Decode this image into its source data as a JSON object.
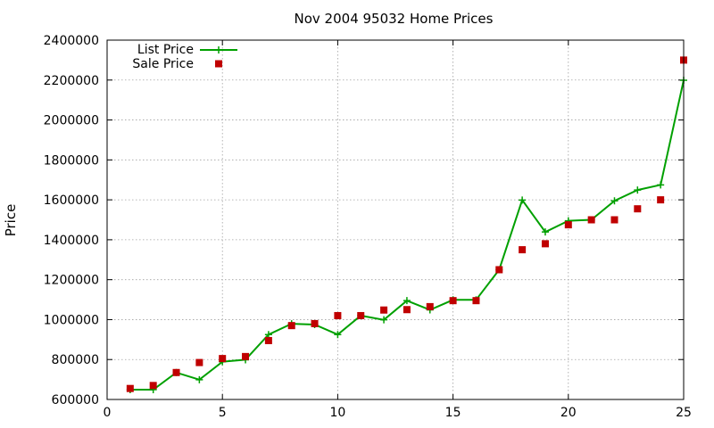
{
  "chart_data": {
    "type": "line",
    "title": "Nov 2004 95032 Home Prices",
    "xlabel": "",
    "ylabel": "Price",
    "xlim": [
      0,
      25
    ],
    "ylim": [
      600000,
      2400000
    ],
    "xticks": [
      0,
      5,
      10,
      15,
      20,
      25
    ],
    "yticks": [
      600000,
      800000,
      1000000,
      1200000,
      1400000,
      1600000,
      1800000,
      2000000,
      2200000,
      2400000
    ],
    "grid": true,
    "legend_position": "top-left",
    "series": [
      {
        "name": "List Price",
        "style": "line-with-plus-markers",
        "color": "#00a000",
        "x": [
          1,
          2,
          3,
          4,
          5,
          6,
          7,
          8,
          9,
          10,
          11,
          12,
          13,
          14,
          15,
          16,
          17,
          18,
          19,
          20,
          21,
          22,
          23,
          24,
          25
        ],
        "y": [
          649000,
          649000,
          735000,
          699000,
          789000,
          799000,
          925000,
          979000,
          975000,
          925000,
          1020000,
          999000,
          1095000,
          1049000,
          1099000,
          1099000,
          1250000,
          1599000,
          1439000,
          1495000,
          1500000,
          1595000,
          1649000,
          1675000,
          2199000
        ]
      },
      {
        "name": "Sale Price",
        "style": "square-markers",
        "color": "#c00000",
        "x": [
          1,
          2,
          3,
          4,
          5,
          6,
          7,
          8,
          9,
          10,
          11,
          12,
          13,
          14,
          15,
          16,
          17,
          18,
          19,
          20,
          21,
          22,
          23,
          24,
          25
        ],
        "y": [
          655000,
          670000,
          735000,
          785000,
          805000,
          815000,
          895000,
          970000,
          980000,
          1020000,
          1020000,
          1048000,
          1050000,
          1065000,
          1095000,
          1095000,
          1250000,
          1350000,
          1380000,
          1475000,
          1500000,
          1500000,
          1555000,
          1600000,
          2300000
        ]
      }
    ]
  }
}
